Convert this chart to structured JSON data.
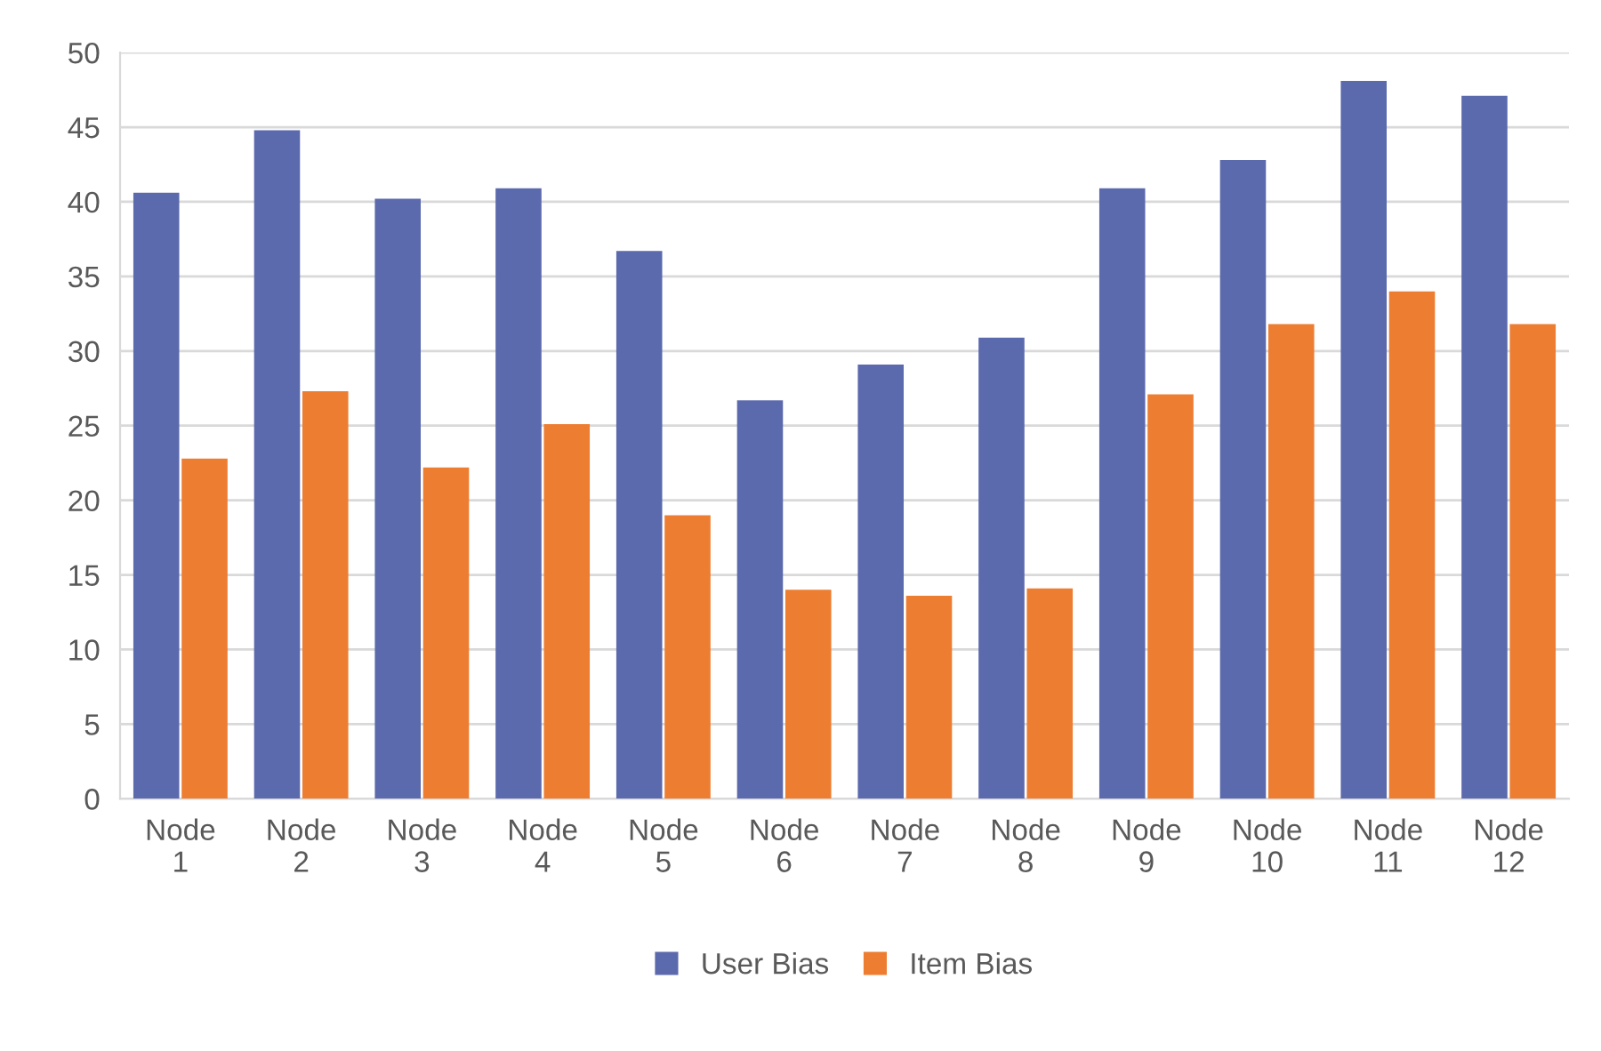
{
  "chart_data": {
    "type": "bar",
    "categories": [
      "Node\n1",
      "Node\n2",
      "Node\n3",
      "Node\n4",
      "Node\n5",
      "Node\n6",
      "Node\n7",
      "Node\n8",
      "Node\n9",
      "Node\n10",
      "Node\n11",
      "Node\n12"
    ],
    "series": [
      {
        "name": "User Bias",
        "color": "#5b69ad",
        "values": [
          40.6,
          44.8,
          40.2,
          40.9,
          36.7,
          26.7,
          29.1,
          30.9,
          40.9,
          42.8,
          48.1,
          47.1
        ]
      },
      {
        "name": "Item Bias",
        "color": "#ed7d31",
        "values": [
          22.8,
          27.3,
          22.2,
          25.1,
          19.0,
          14.0,
          13.6,
          14.1,
          27.1,
          31.8,
          34.0,
          31.8
        ]
      }
    ],
    "ylim": [
      0,
      50
    ],
    "yticks": [
      0,
      5,
      10,
      15,
      20,
      25,
      30,
      35,
      40,
      45,
      50
    ],
    "grid": "y",
    "legend": "bottom"
  }
}
